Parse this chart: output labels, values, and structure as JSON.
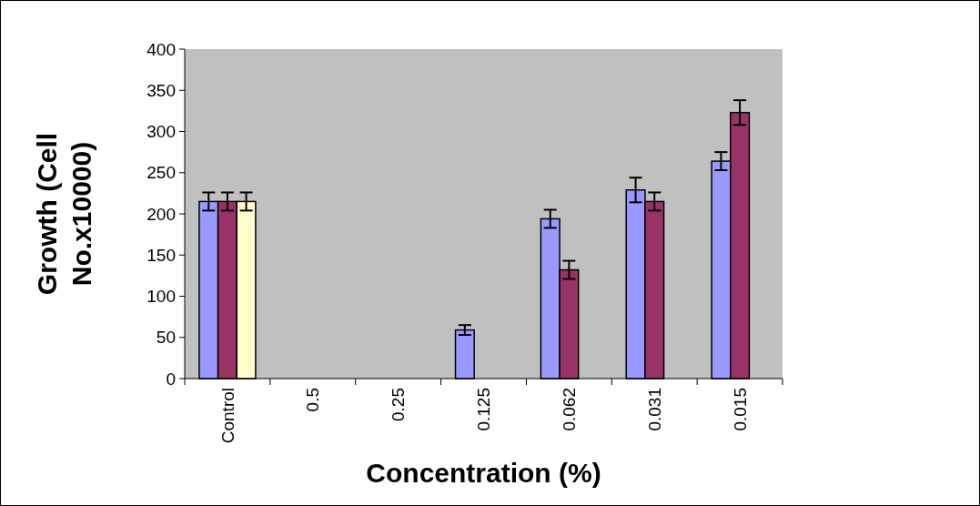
{
  "chart_data": {
    "type": "bar",
    "xlabel": "Concentration (%)",
    "ylabel": "Growth (Cell No.x10000)",
    "categories": [
      "Control",
      "0.5",
      "0.25",
      "0.125",
      "0.062",
      "0.031",
      "0.015"
    ],
    "series": [
      {
        "color": "#9999ff",
        "values": [
          215,
          0,
          0,
          59,
          194,
          229,
          264
        ],
        "errors": [
          11,
          null,
          null,
          6,
          11,
          15,
          11
        ]
      },
      {
        "color": "#993366",
        "values": [
          215,
          0,
          0,
          0,
          132,
          215,
          323
        ],
        "errors": [
          11,
          null,
          null,
          null,
          11,
          11,
          15
        ]
      },
      {
        "color": "#ffffcc",
        "values": [
          215,
          0,
          0,
          0,
          0,
          0,
          0
        ],
        "errors": [
          11,
          null,
          null,
          null,
          null,
          null,
          null
        ]
      }
    ],
    "ylim": [
      0,
      400
    ],
    "yticks": [
      0,
      50,
      100,
      150,
      200,
      250,
      300,
      350,
      400
    ],
    "grid": false
  }
}
